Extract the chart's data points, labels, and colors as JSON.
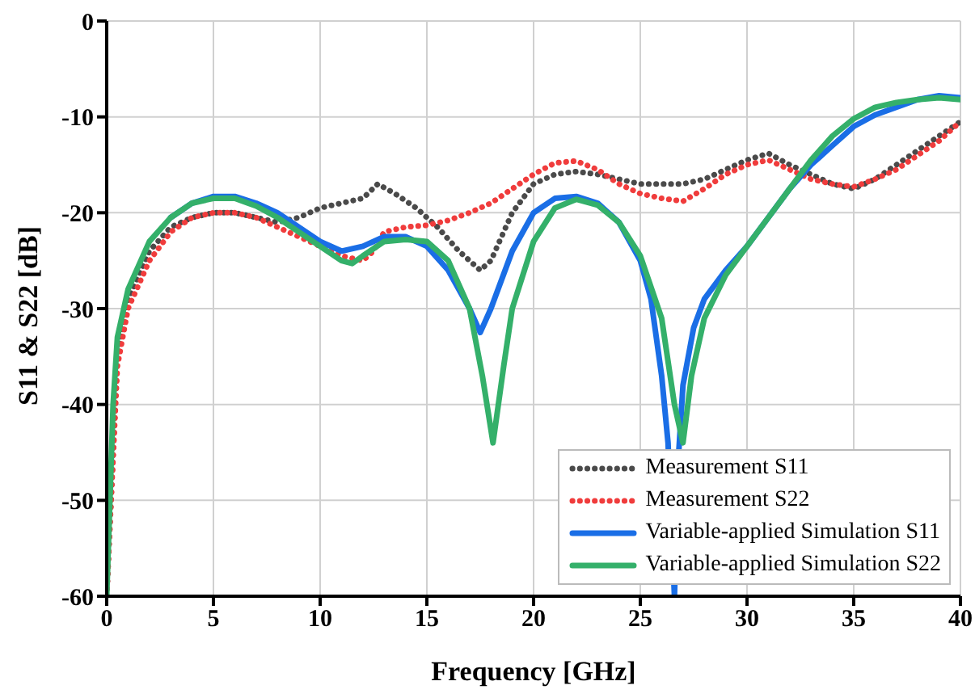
{
  "chart_data": {
    "type": "line",
    "xlabel": "Frequency [GHz]",
    "ylabel": "S11 & S22 [dB]",
    "xlim": [
      0,
      40
    ],
    "ylim": [
      -60,
      0
    ],
    "xticks": [
      0,
      5,
      10,
      15,
      20,
      25,
      30,
      35,
      40
    ],
    "yticks": [
      -60,
      -50,
      -40,
      -30,
      -20,
      -10,
      0
    ],
    "grid": true,
    "legend": "bottom right",
    "marker": "none",
    "series": [
      {
        "name": "Measurement S11",
        "color": "#4a4a4a",
        "line_style": "dotted",
        "x": [
          0,
          0.5,
          1,
          2,
          3,
          4,
          5,
          6,
          7,
          8,
          9,
          10,
          11,
          12,
          12.7,
          13.5,
          14.5,
          15.5,
          16.5,
          17.5,
          18,
          19,
          20,
          21,
          22,
          23,
          24,
          25,
          26,
          27,
          28,
          29,
          30,
          31,
          32,
          33,
          34,
          35,
          36,
          37,
          38,
          39,
          40
        ],
        "values": [
          -60,
          -35,
          -29,
          -24,
          -21.5,
          -20.5,
          -20,
          -20,
          -20.5,
          -21,
          -20.5,
          -19.5,
          -19,
          -18.5,
          -17,
          -18,
          -19.5,
          -21.5,
          -24,
          -26,
          -25,
          -20,
          -17,
          -16,
          -15.7,
          -16,
          -16.5,
          -17,
          -17,
          -17,
          -16.5,
          -15.5,
          -14.5,
          -13.8,
          -15,
          -16,
          -17,
          -17.5,
          -16.5,
          -15,
          -13.5,
          -12,
          -10.5
        ]
      },
      {
        "name": "Measurement S22",
        "color": "#f03c3c",
        "line_style": "dotted",
        "x": [
          0,
          0.5,
          1,
          2,
          3,
          4,
          5,
          6,
          7,
          8,
          9,
          10,
          11,
          12,
          12.5,
          13,
          14,
          15,
          16,
          17,
          18,
          19,
          20,
          21,
          22,
          23,
          24,
          25,
          26,
          27,
          28,
          29,
          30,
          31,
          32,
          33,
          34,
          35,
          36,
          37,
          38,
          39,
          40
        ],
        "values": [
          -60,
          -36,
          -30,
          -25,
          -22,
          -20.5,
          -20,
          -20,
          -20.5,
          -21.5,
          -22.5,
          -23.5,
          -24.5,
          -25,
          -24,
          -22,
          -21.5,
          -21.3,
          -20.8,
          -20,
          -19,
          -17.5,
          -16,
          -14.8,
          -14.6,
          -15.5,
          -17,
          -18,
          -18.5,
          -18.8,
          -17.5,
          -16,
          -15,
          -14.5,
          -15.5,
          -16.5,
          -17,
          -17.3,
          -16.5,
          -15.5,
          -14,
          -12.5,
          -10.5
        ]
      },
      {
        "name": "Variable-applied Simulation S11",
        "color": "#1a6ee6",
        "line_style": "solid",
        "x": [
          3,
          4,
          5,
          6,
          7,
          8,
          9,
          10,
          11,
          12,
          13,
          14,
          15,
          16,
          17,
          17.5,
          18,
          19,
          20,
          21,
          22,
          23,
          24,
          25,
          25.5,
          26,
          26.3,
          26.6,
          26.8,
          27,
          27.5,
          28,
          29,
          30,
          31,
          32,
          33,
          34,
          35,
          36,
          37,
          38,
          39,
          40
        ],
        "values": [
          -20.5,
          -19,
          -18.3,
          -18.3,
          -19,
          -20,
          -21.5,
          -23,
          -24,
          -23.5,
          -22.5,
          -22.5,
          -23.5,
          -26,
          -30,
          -32.5,
          -30,
          -24,
          -20,
          -18.5,
          -18.3,
          -19,
          -21,
          -25,
          -29,
          -37,
          -44,
          -60,
          -45,
          -38,
          -32,
          -29,
          -26,
          -23.5,
          -20.5,
          -17.5,
          -15,
          -13,
          -11,
          -9.8,
          -9,
          -8.2,
          -7.8,
          -8
        ]
      },
      {
        "name": "Variable-applied Simulation S22",
        "color": "#34b06a",
        "line_style": "solid",
        "x": [
          0,
          0.3,
          0.5,
          1,
          2,
          3,
          4,
          5,
          6,
          7,
          8,
          9,
          10,
          11,
          11.5,
          12,
          13,
          14,
          15,
          16,
          17,
          17.6,
          18.1,
          18.6,
          19,
          20,
          21,
          22,
          23,
          24,
          25,
          26,
          26.6,
          27,
          27.4,
          28,
          29,
          30,
          31,
          32,
          33,
          34,
          35,
          36,
          37,
          38,
          39,
          40
        ],
        "values": [
          -60,
          -40,
          -33,
          -28,
          -23,
          -20.5,
          -19,
          -18.5,
          -18.5,
          -19.3,
          -20.5,
          -22,
          -23.5,
          -25,
          -25.3,
          -24.5,
          -23,
          -22.8,
          -23,
          -25,
          -30,
          -37,
          -44,
          -36,
          -30,
          -23,
          -19.5,
          -18.6,
          -19.2,
          -21,
          -24.5,
          -31,
          -40,
          -44,
          -37,
          -31,
          -26.5,
          -23.5,
          -20.5,
          -17.5,
          -14.5,
          -12,
          -10.2,
          -9,
          -8.5,
          -8.2,
          -8,
          -8.2
        ]
      }
    ]
  }
}
